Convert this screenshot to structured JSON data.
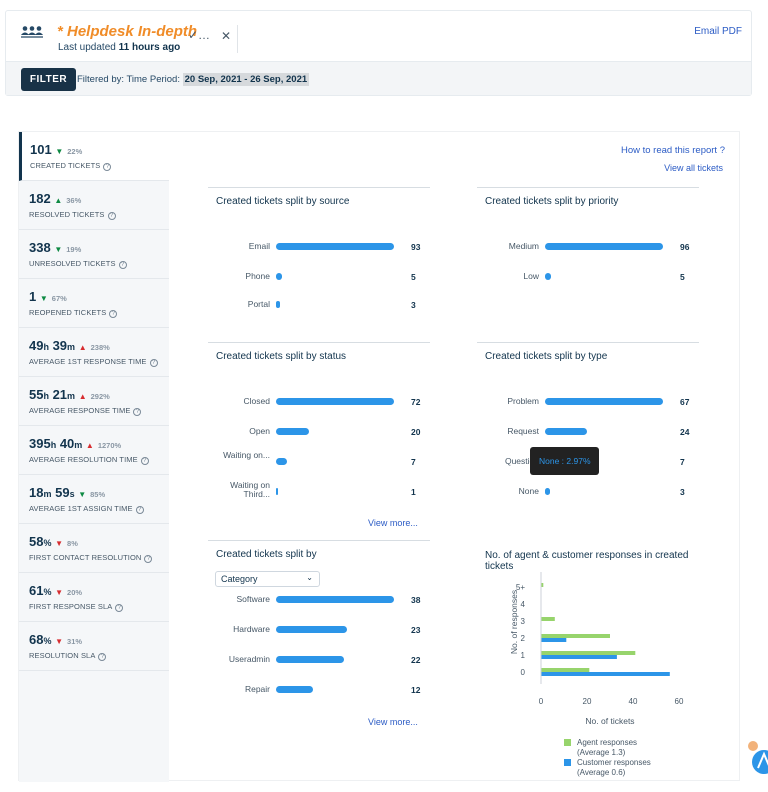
{
  "header": {
    "title": "* Helpdesk In-depth",
    "updated_prefix": "Last updated ",
    "updated_value": "11 hours ago",
    "email_pdf": "Email PDF",
    "filter_button": "FILTER",
    "filtered_by": "Filtered by:  Time Period:",
    "date_range": "20 Sep, 2021 - 26 Sep, 2021"
  },
  "metrics": [
    {
      "value": "101",
      "change": "22%",
      "dir": "down",
      "label": "CREATED TICKETS"
    },
    {
      "value": "182",
      "change": "36%",
      "dir": "up-good",
      "label": "RESOLVED TICKETS"
    },
    {
      "value": "338",
      "change": "19%",
      "dir": "down",
      "label": "UNRESOLVED TICKETS"
    },
    {
      "value": "1",
      "change": "67%",
      "dir": "down",
      "label": "REOPENED TICKETS"
    },
    {
      "value_parts": [
        "49",
        "h",
        " 39",
        "m"
      ],
      "change": "238%",
      "dir": "up",
      "label": "AVERAGE 1ST RESPONSE TIME"
    },
    {
      "value_parts": [
        "55",
        "h",
        " 21",
        "m"
      ],
      "change": "292%",
      "dir": "up",
      "label": "AVERAGE RESPONSE TIME"
    },
    {
      "value_parts": [
        "395",
        "h",
        " 40",
        "m"
      ],
      "change": "1270%",
      "dir": "up",
      "label": "AVERAGE RESOLUTION TIME"
    },
    {
      "value_parts": [
        "18",
        "m",
        " 59",
        "s"
      ],
      "change": "85%",
      "dir": "down",
      "label": "AVERAGE 1ST ASSIGN TIME"
    },
    {
      "value_parts": [
        "58",
        "%"
      ],
      "change": "8%",
      "dir": "down-bad",
      "label": "FIRST CONTACT RESOLUTION"
    },
    {
      "value_parts": [
        "61",
        "%"
      ],
      "change": "20%",
      "dir": "down-bad",
      "label": "FIRST RESPONSE SLA"
    },
    {
      "value_parts": [
        "68",
        "%"
      ],
      "change": "31%",
      "dir": "down-bad",
      "label": "RESOLUTION SLA"
    }
  ],
  "links": {
    "how_to_read": "How to read this report ?",
    "view_all": "View all tickets",
    "view_more": "View more..."
  },
  "chart_data": [
    {
      "type": "bar",
      "title": "Created tickets split by source",
      "categories": [
        "Email",
        "Phone",
        "Portal"
      ],
      "values": [
        93,
        5,
        3
      ]
    },
    {
      "type": "bar",
      "title": "Created tickets split by priority",
      "categories": [
        "Medium",
        "Low"
      ],
      "values": [
        96,
        5
      ]
    },
    {
      "type": "bar",
      "title": "Created tickets split by status",
      "categories": [
        "Closed",
        "Open",
        "Waiting on...",
        "Waiting on Third..."
      ],
      "values": [
        72,
        20,
        7,
        1
      ]
    },
    {
      "type": "bar",
      "title": "Created tickets split by type",
      "categories": [
        "Problem",
        "Request",
        "Question",
        "None"
      ],
      "values": [
        67,
        24,
        7,
        3
      ],
      "tooltip": "None : 2.97%"
    },
    {
      "type": "bar",
      "title": "Created tickets split by",
      "dropdown": "Category",
      "categories": [
        "Software",
        "Hardware",
        "Useradmin",
        "Repair"
      ],
      "values": [
        38,
        23,
        22,
        12
      ]
    },
    {
      "type": "bar",
      "title": "No. of agent & customer responses in created tickets",
      "xlabel": "No. of tickets",
      "ylabel": "No. of responses",
      "categories": [
        "5+",
        "4",
        "3",
        "2",
        "1",
        "0"
      ],
      "xticks": [
        "0",
        "20",
        "40",
        "60"
      ],
      "xlim": [
        0,
        60
      ],
      "series": [
        {
          "name": "Agent responses",
          "note": "(Average 1.3)",
          "color": "#97d46c",
          "values": [
            1,
            0,
            6,
            30,
            41,
            21
          ]
        },
        {
          "name": "Customer responses",
          "note": "(Average 0.6)",
          "color": "#2c95e8",
          "values": [
            0,
            0,
            0,
            11,
            33,
            56
          ]
        }
      ]
    }
  ]
}
